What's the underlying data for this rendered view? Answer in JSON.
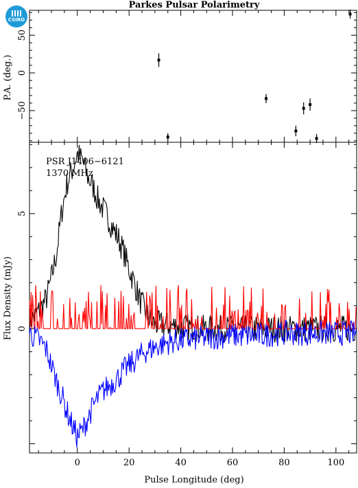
{
  "logo": {
    "text": "CSIRO",
    "color": "#1e9bd7"
  },
  "chart_data": [
    {
      "type": "scatter",
      "title": "Parkes Pulsar Polarimetry",
      "xlabel": "",
      "ylabel": "P.A. (deg.)",
      "xlim": [
        -18.5,
        108
      ],
      "ylim": [
        -92,
        83
      ],
      "yticks": [
        -50,
        0,
        50
      ],
      "grid": false,
      "points": [
        {
          "x": 31.5,
          "y": 17,
          "err": 9
        },
        {
          "x": 35.0,
          "y": -85,
          "err": 5
        },
        {
          "x": 73.0,
          "y": -34,
          "err": 6
        },
        {
          "x": 84.5,
          "y": -77,
          "err": 7
        },
        {
          "x": 87.5,
          "y": -47,
          "err": 8
        },
        {
          "x": 90.0,
          "y": -42,
          "err": 8
        },
        {
          "x": 92.5,
          "y": -87,
          "err": 6
        },
        {
          "x": 105.5,
          "y": 78,
          "err": 6
        }
      ]
    },
    {
      "type": "line",
      "title": "",
      "xlabel": "Pulse Longitude (deg)",
      "ylabel": "Flux Density (mJy)",
      "xlim": [
        -18.5,
        108
      ],
      "ylim": [
        -5.4,
        8.1
      ],
      "xticks": [
        0,
        20,
        40,
        60,
        80,
        100
      ],
      "yticks": [
        0,
        5
      ],
      "grid": false,
      "annotations": [
        "PSR J1406−6121",
        "1370 MHz"
      ],
      "series": [
        {
          "color": "#000000",
          "description_points": "total intensity",
          "x": [
            -18.5,
            -16,
            -14,
            -12,
            -10,
            -8,
            -6,
            -4,
            -2,
            0,
            2,
            4,
            6,
            8,
            10,
            12,
            14,
            16,
            18,
            20,
            22,
            24,
            26,
            28,
            30,
            40,
            50,
            60,
            70,
            80,
            90,
            100,
            108
          ],
          "y": [
            0.3,
            0.6,
            0.9,
            1.3,
            2.2,
            3.3,
            5.1,
            6.3,
            6.9,
            7.6,
            7.3,
            6.6,
            6.2,
            5.6,
            5.2,
            4.8,
            4.3,
            3.9,
            3.3,
            2.6,
            2.0,
            1.3,
            0.8,
            0.4,
            0.2,
            0.1,
            0.0,
            0.0,
            0.0,
            0.0,
            0.0,
            0.0,
            0.0
          ]
        },
        {
          "color": "#ff0000",
          "description_points": "linear polarization",
          "x": [
            -18.5,
            108
          ],
          "y": [
            0.0,
            0.0
          ]
        },
        {
          "color": "#0000ff",
          "description_points": "circular polarization",
          "x": [
            -18.5,
            -16,
            -14,
            -12,
            -10,
            -8,
            -6,
            -4,
            -2,
            0,
            2,
            4,
            6,
            8,
            10,
            12,
            14,
            16,
            18,
            20,
            22,
            24,
            26,
            28,
            30,
            35,
            40,
            50,
            60,
            70,
            80,
            90,
            100,
            108
          ],
          "y": [
            -0.2,
            -0.4,
            -0.6,
            -0.9,
            -1.6,
            -2.3,
            -2.9,
            -3.6,
            -4.2,
            -4.7,
            -4.4,
            -3.9,
            -3.4,
            -3.0,
            -2.7,
            -2.5,
            -2.3,
            -2.1,
            -1.8,
            -1.6,
            -1.4,
            -1.2,
            -1.0,
            -0.9,
            -0.8,
            -0.6,
            -0.5,
            -0.4,
            -0.3,
            -0.3,
            -0.2,
            -0.2,
            -0.2,
            -0.2
          ]
        }
      ]
    }
  ]
}
